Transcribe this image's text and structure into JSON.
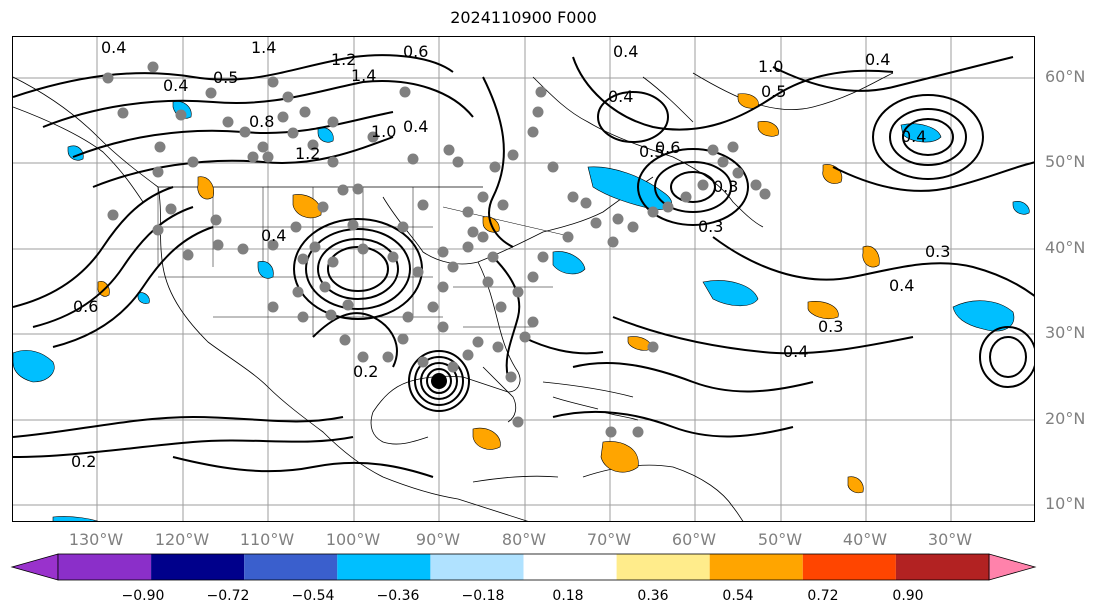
{
  "title": "2024110900 F000",
  "lat_labels": [
    {
      "text": "60°N"
    },
    {
      "text": "50°N"
    },
    {
      "text": "40°N"
    },
    {
      "text": "30°N"
    },
    {
      "text": "20°N"
    },
    {
      "text": "10°N"
    }
  ],
  "lon_labels": [
    {
      "text": "130°W"
    },
    {
      "text": "120°W"
    },
    {
      "text": "110°W"
    },
    {
      "text": "100°W"
    },
    {
      "text": "90°W"
    },
    {
      "text": "80°W"
    },
    {
      "text": "70°W"
    },
    {
      "text": "60°W"
    },
    {
      "text": "50°W"
    },
    {
      "text": "40°W"
    },
    {
      "text": "30°W"
    }
  ],
  "colorbar": {
    "colors": [
      "#9932cc",
      "#8b2fc9",
      "#00008b",
      "#3a5fcd",
      "#00bfff",
      "#b0e2ff",
      "#ffffff",
      "#ffec8b",
      "#ffa500",
      "#ff4500",
      "#b22222",
      "#ff82ab"
    ],
    "ticks": [
      "−0.90",
      "−0.72",
      "−0.54",
      "−0.36",
      "−0.18",
      "0.18",
      "0.36",
      "0.54",
      "0.72",
      "0.90"
    ]
  },
  "contour_labels": [
    "0.4",
    "1.4",
    "1.2",
    "0.6",
    "1.4",
    "0.4",
    "0.5",
    "0.8",
    "1.0",
    "0.4",
    "1.2",
    "0.4",
    "0.4",
    "0.5",
    "0.6",
    "0.4",
    "0.5",
    "1.0",
    "0.4",
    "0.3",
    "0.4",
    "0.3",
    "0.4",
    "0.3",
    "0.4",
    "0.6",
    "0.3",
    "0.2",
    "0.2"
  ],
  "fill_colors": {
    "cyan": "#00bfff",
    "orange": "#ffa500"
  },
  "station_color": "#808080"
}
